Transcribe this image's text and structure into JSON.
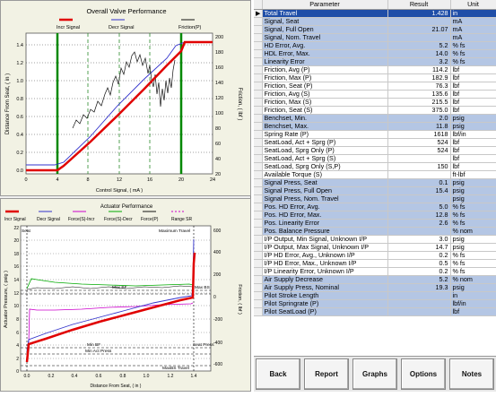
{
  "chart1": {
    "title": "Overall Valve Performance",
    "legend": [
      {
        "label": "Incr Signal",
        "color": "#e00000"
      },
      {
        "label": "Decr Signal",
        "color": "#3333cc"
      },
      {
        "label": "Friction(P)",
        "color": "#111111"
      }
    ],
    "xlabel": "Control Signal, ( mA )",
    "ylabel_left": "Distance From Seat, ( in )",
    "ylabel_right": "Friction, ( lbf )",
    "x_ticks": [
      "0",
      "4",
      "8",
      "12",
      "16",
      "20",
      "24"
    ],
    "y_ticks_left": [
      "0.0",
      "0.2",
      "0.4",
      "0.6",
      "0.8",
      "1.0",
      "1.2",
      "1.4"
    ],
    "y_ticks_right": [
      "20",
      "40",
      "60",
      "80",
      "100",
      "120",
      "140",
      "160",
      "180",
      "200"
    ]
  },
  "chart2": {
    "title": "Actuator Performance",
    "legend": [
      {
        "label": "Incr Signal",
        "color": "#e00000"
      },
      {
        "label": "Decr Signal",
        "color": "#3333cc"
      },
      {
        "label": "Force(S)-Incr",
        "color": "#cc00cc"
      },
      {
        "label": "Force(S)-Decr",
        "color": "#00aa00"
      },
      {
        "label": "Force(P)",
        "color": "#111111"
      },
      {
        "label": "Range SR",
        "color": "#cc00cc"
      }
    ],
    "xlabel": "Distance From Seat, ( in )",
    "ylabel_left": "Actuator Pressure, ( psig )",
    "ylabel_right": "Friction, ( lbf )",
    "x_ticks": [
      "0.0",
      "0.2",
      "0.4",
      "0.6",
      "0.8",
      "1.0",
      "1.2",
      "1.4"
    ],
    "y_ticks_left": [
      "0",
      "2",
      "4",
      "6",
      "8",
      "10",
      "12",
      "14",
      "16",
      "18",
      "20",
      "22"
    ],
    "y_ticks_right": [
      "-600",
      "-400",
      "-200",
      "0",
      "200",
      "400",
      "600"
    ],
    "annotations": {
      "seat": "Seat",
      "max_travel": "Maximum Travel",
      "max_bf": "Max BF",
      "max_bs": "Max BS",
      "min_bf": "Min BF",
      "min_act_press": "Min Act Press",
      "seat_press": "Seat Press",
      "max_bs_travel": "MaxBS Travel"
    }
  },
  "table": {
    "headers": [
      "Parameter",
      "Result",
      "Unit"
    ],
    "rows": [
      {
        "p": "Total Travel",
        "r": "1.428",
        "u": "in",
        "s": "sel"
      },
      {
        "p": "Signal, Seat",
        "r": "",
        "u": "mA",
        "s": "blue"
      },
      {
        "p": "Signal, Full Open",
        "r": "21.07",
        "u": "mA",
        "s": "blue"
      },
      {
        "p": "Signal, Nom. Travel",
        "r": "",
        "u": "mA",
        "s": "blue"
      },
      {
        "p": "HD Error, Avg.",
        "r": "5.2",
        "u": "% fs",
        "s": "blue"
      },
      {
        "p": "HDL Error, Max.",
        "r": "14.0",
        "u": "% fs",
        "s": "blue"
      },
      {
        "p": "Linearity Error",
        "r": "3.2",
        "u": "% fs",
        "s": "blue"
      },
      {
        "p": "Friction, Avg (P)",
        "r": "114.2",
        "u": "lbf",
        "s": "white"
      },
      {
        "p": "Friction, Max (P)",
        "r": "182.9",
        "u": "lbf",
        "s": "white"
      },
      {
        "p": "Friction, Seat (P)",
        "r": "76.3",
        "u": "lbf",
        "s": "white"
      },
      {
        "p": "Friction, Avg (S)",
        "r": "135.6",
        "u": "lbf",
        "s": "white"
      },
      {
        "p": "Friction, Max (S)",
        "r": "215.5",
        "u": "lbf",
        "s": "white"
      },
      {
        "p": "Friction, Seat (S)",
        "r": "375.0",
        "u": "lbf",
        "s": "white"
      },
      {
        "p": "Benchset, Min.",
        "r": "2.0",
        "u": "psig",
        "s": "blue"
      },
      {
        "p": "Benchset, Max.",
        "r": "11.8",
        "u": "psig",
        "s": "blue"
      },
      {
        "p": "Spring Rate (P)",
        "r": "1618",
        "u": "lbf/in",
        "s": "white"
      },
      {
        "p": "SeatLoad, Act + Sprg (P)",
        "r": "524",
        "u": "lbf",
        "s": "white"
      },
      {
        "p": "SeatLoad, Sprg Only (P)",
        "r": "524",
        "u": "lbf",
        "s": "white"
      },
      {
        "p": "SeatLoad, Act + Sprg (S)",
        "r": "",
        "u": "lbf",
        "s": "white"
      },
      {
        "p": "SeatLoad, Sprg Only (S,P)",
        "r": "150",
        "u": "lbf",
        "s": "white"
      },
      {
        "p": "Available Torque (S)",
        "r": "",
        "u": "ft-lbf",
        "s": "white"
      },
      {
        "p": "Signal Press, Seat",
        "r": "0.1",
        "u": "psig",
        "s": "blue"
      },
      {
        "p": "Signal Press, Full Open",
        "r": "15.4",
        "u": "psig",
        "s": "blue"
      },
      {
        "p": "Signal Press, Nom. Travel",
        "r": "",
        "u": "psig",
        "s": "blue"
      },
      {
        "p": "Pos. HD Error, Avg.",
        "r": "5.0",
        "u": "% fs",
        "s": "blue"
      },
      {
        "p": "Pos. HD Error, Max.",
        "r": "12.8",
        "u": "% fs",
        "s": "blue"
      },
      {
        "p": "Pos. Linearity Error",
        "r": "2.6",
        "u": "% fs",
        "s": "blue"
      },
      {
        "p": "Pos. Balance Pressure",
        "r": "",
        "u": "% nom",
        "s": "blue"
      },
      {
        "p": "I/P Output, Min Signal, Unknown I/P",
        "r": "3.0",
        "u": "psig",
        "s": "white"
      },
      {
        "p": "I/P Output, Max Signal, Unknown I/P",
        "r": "14.7",
        "u": "psig",
        "s": "white"
      },
      {
        "p": "I/P HD Error, Avg., Unknown I/P",
        "r": "0.2",
        "u": "% fs",
        "s": "white"
      },
      {
        "p": "I/P HD Error, Max., Unknown I/P",
        "r": "0.5",
        "u": "% fs",
        "s": "white"
      },
      {
        "p": "I/P Linearity Error, Unknown I/P",
        "r": "0.2",
        "u": "% fs",
        "s": "white"
      },
      {
        "p": "Air Supply Decrease",
        "r": "5.2",
        "u": "% nom",
        "s": "blue"
      },
      {
        "p": "Air Supply Press, Nominal",
        "r": "19.3",
        "u": "psig",
        "s": "blue"
      },
      {
        "p": "Pilot Stroke Length",
        "r": "",
        "u": "in",
        "s": "blue"
      },
      {
        "p": "Pilot Springrate (P)",
        "r": "",
        "u": "lbf/in",
        "s": "blue"
      },
      {
        "p": "Pilot SeatLoad (P)",
        "r": "",
        "u": "lbf",
        "s": "blue"
      }
    ]
  },
  "buttons": {
    "back": "Back",
    "report": "Report",
    "graphs": "Graphs",
    "options": "Options",
    "notes": "Notes"
  }
}
